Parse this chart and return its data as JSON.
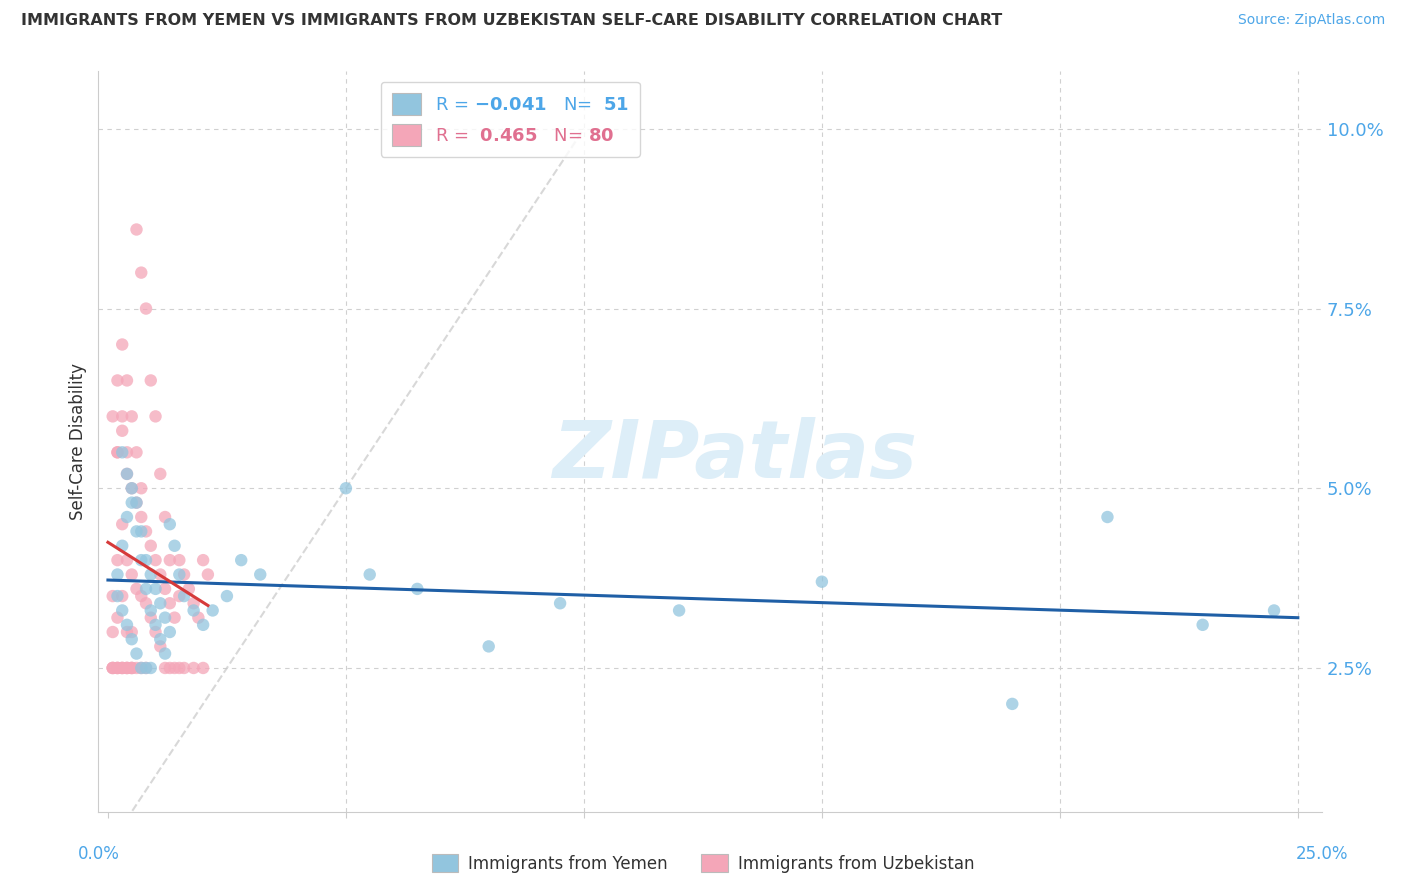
{
  "title": "IMMIGRANTS FROM YEMEN VS IMMIGRANTS FROM UZBEKISTAN SELF-CARE DISABILITY CORRELATION CHART",
  "source": "Source: ZipAtlas.com",
  "ylabel": "Self-Care Disability",
  "ytick_labels": [
    "2.5%",
    "5.0%",
    "7.5%",
    "10.0%"
  ],
  "ytick_values": [
    0.025,
    0.05,
    0.075,
    0.1
  ],
  "xlim": [
    -0.002,
    0.255
  ],
  "ylim": [
    0.005,
    0.108
  ],
  "legend_blue_N": "51",
  "legend_pink_R": "0.465",
  "legend_pink_N": "80",
  "blue_color": "#92c5de",
  "pink_color": "#f4a6b8",
  "blue_line_color": "#1f5fa6",
  "pink_line_color": "#d63a3a",
  "diagonal_color": "#c8c8c8",
  "watermark": "ZIPatlas",
  "watermark_color": "#ddeef8",
  "blue_scatter_x": [
    0.002,
    0.003,
    0.004,
    0.005,
    0.006,
    0.007,
    0.008,
    0.009,
    0.01,
    0.011,
    0.012,
    0.013,
    0.003,
    0.004,
    0.005,
    0.006,
    0.007,
    0.008,
    0.009,
    0.01,
    0.011,
    0.012,
    0.002,
    0.003,
    0.004,
    0.005,
    0.006,
    0.007,
    0.008,
    0.009,
    0.013,
    0.014,
    0.015,
    0.016,
    0.018,
    0.02,
    0.022,
    0.025,
    0.028,
    0.032,
    0.05,
    0.055,
    0.065,
    0.08,
    0.095,
    0.12,
    0.15,
    0.19,
    0.21,
    0.245,
    0.23
  ],
  "blue_scatter_y": [
    0.038,
    0.042,
    0.046,
    0.05,
    0.048,
    0.044,
    0.04,
    0.038,
    0.036,
    0.034,
    0.032,
    0.03,
    0.055,
    0.052,
    0.048,
    0.044,
    0.04,
    0.036,
    0.033,
    0.031,
    0.029,
    0.027,
    0.035,
    0.033,
    0.031,
    0.029,
    0.027,
    0.025,
    0.025,
    0.025,
    0.045,
    0.042,
    0.038,
    0.035,
    0.033,
    0.031,
    0.033,
    0.035,
    0.04,
    0.038,
    0.05,
    0.038,
    0.036,
    0.028,
    0.034,
    0.033,
    0.037,
    0.02,
    0.046,
    0.033,
    0.031
  ],
  "pink_scatter_x": [
    0.001,
    0.001,
    0.001,
    0.002,
    0.002,
    0.002,
    0.002,
    0.003,
    0.003,
    0.003,
    0.003,
    0.004,
    0.004,
    0.004,
    0.004,
    0.005,
    0.005,
    0.005,
    0.005,
    0.006,
    0.006,
    0.006,
    0.007,
    0.007,
    0.007,
    0.008,
    0.008,
    0.008,
    0.009,
    0.009,
    0.01,
    0.01,
    0.011,
    0.011,
    0.012,
    0.012,
    0.013,
    0.013,
    0.014,
    0.014,
    0.015,
    0.015,
    0.016,
    0.016,
    0.017,
    0.018,
    0.018,
    0.019,
    0.02,
    0.021,
    0.001,
    0.002,
    0.002,
    0.003,
    0.003,
    0.004,
    0.004,
    0.005,
    0.006,
    0.007,
    0.001,
    0.001,
    0.002,
    0.002,
    0.003,
    0.003,
    0.004,
    0.004,
    0.005,
    0.005,
    0.006,
    0.007,
    0.008,
    0.009,
    0.01,
    0.011,
    0.012,
    0.013,
    0.015,
    0.02
  ],
  "pink_scatter_y": [
    0.035,
    0.03,
    0.025,
    0.055,
    0.04,
    0.032,
    0.025,
    0.06,
    0.045,
    0.035,
    0.025,
    0.055,
    0.04,
    0.03,
    0.025,
    0.05,
    0.038,
    0.03,
    0.025,
    0.048,
    0.036,
    0.025,
    0.046,
    0.035,
    0.025,
    0.044,
    0.034,
    0.025,
    0.042,
    0.032,
    0.04,
    0.03,
    0.038,
    0.028,
    0.036,
    0.025,
    0.034,
    0.025,
    0.032,
    0.025,
    0.04,
    0.025,
    0.038,
    0.025,
    0.036,
    0.034,
    0.025,
    0.032,
    0.04,
    0.038,
    0.06,
    0.065,
    0.055,
    0.07,
    0.058,
    0.065,
    0.052,
    0.06,
    0.055,
    0.05,
    0.025,
    0.025,
    0.025,
    0.025,
    0.025,
    0.025,
    0.025,
    0.025,
    0.025,
    0.025,
    0.086,
    0.08,
    0.075,
    0.065,
    0.06,
    0.052,
    0.046,
    0.04,
    0.035,
    0.025
  ]
}
